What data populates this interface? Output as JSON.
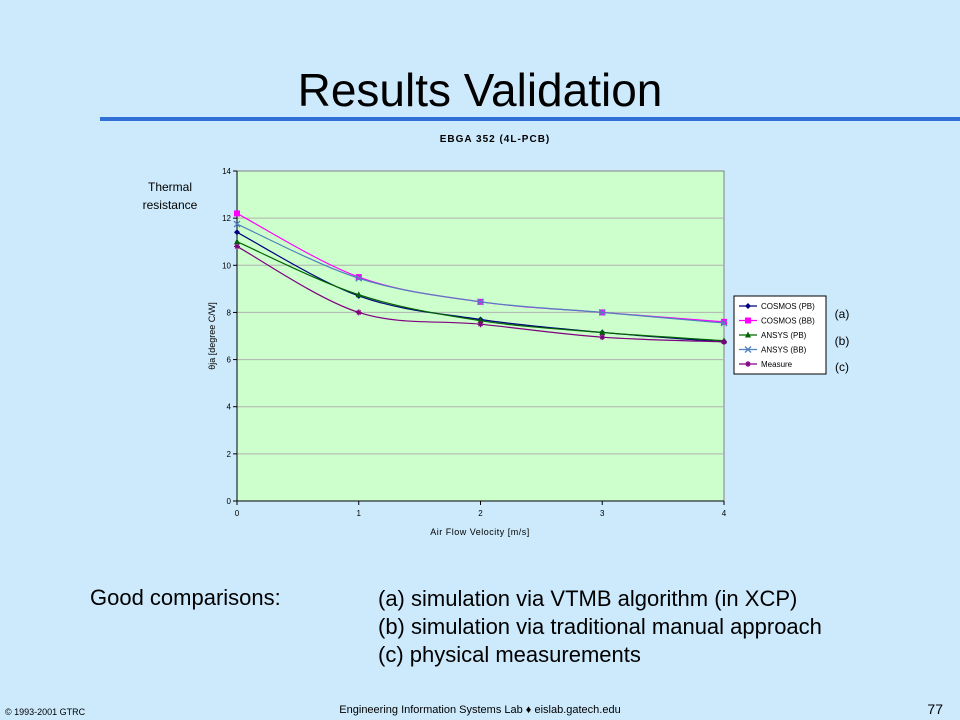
{
  "slide": {
    "title": "Results Validation",
    "comparisons_label": "Good comparisons:",
    "comparisons": [
      "(a) simulation via VTMB algorithm  (in XCP)",
      "(b) simulation via traditional manual approach",
      "(c) physical measurements"
    ],
    "footer_left": "© 1993-2001  GTRC",
    "footer_center": "Engineering Information Systems Lab ♦ eislab.gatech.edu",
    "page_number": "77",
    "thermal_label_line1": "Thermal",
    "thermal_label_line2": "resistance",
    "group_labels": [
      "(a)",
      "(b)",
      "(c)"
    ]
  },
  "colors": {
    "background": "#cdeafc",
    "plot_area": "#ccffcc",
    "title_rule": "#2f6fd6",
    "series": [
      "#000080",
      "#ff00ff",
      "#006400",
      "#4f81bd",
      "#800080"
    ]
  },
  "chart_data": {
    "type": "line",
    "title": "EBGA 352 (4L-PCB)",
    "xlabel": "Air Flow Velocity [m/s]",
    "ylabel": "θja  [degree C/W]",
    "x": [
      0,
      1,
      2,
      3,
      4
    ],
    "xlim": [
      0,
      4
    ],
    "ylim": [
      0,
      14
    ],
    "xticks": [
      "0",
      "1",
      "2",
      "3",
      "4"
    ],
    "yticks": [
      "0",
      "2",
      "4",
      "6",
      "8",
      "10",
      "12",
      "14"
    ],
    "grid": true,
    "legend_position": "right",
    "series": [
      {
        "name": "COSMOS (PB)",
        "values": [
          11.4,
          8.7,
          7.7,
          7.15,
          6.75
        ],
        "marker": "diamond"
      },
      {
        "name": "COSMOS (BB)",
        "values": [
          12.2,
          9.5,
          8.45,
          8.0,
          7.6
        ],
        "marker": "square"
      },
      {
        "name": "ANSYS (PB)",
        "values": [
          11.0,
          8.75,
          7.65,
          7.15,
          6.8
        ],
        "marker": "triangle"
      },
      {
        "name": "ANSYS (BB)",
        "values": [
          11.75,
          9.45,
          8.45,
          8.0,
          7.55
        ],
        "marker": "x"
      },
      {
        "name": "Measure",
        "values": [
          10.8,
          8.0,
          7.5,
          6.95,
          6.75
        ],
        "marker": "star"
      }
    ]
  }
}
